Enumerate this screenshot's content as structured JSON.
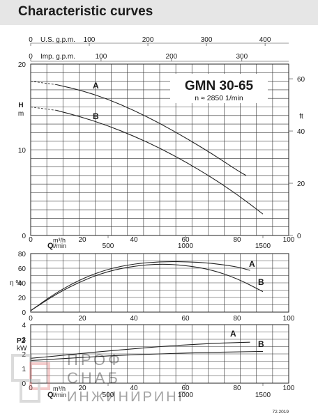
{
  "header": {
    "title": "Characteristic curves"
  },
  "footer_code": "72.2019",
  "watermark": {
    "line1": "ПРОФ",
    "line2": "СНАБ",
    "line3": "ИНЖИНИРИНГ"
  },
  "chart_data": [
    {
      "type": "line",
      "panel": "head",
      "model": "GMN 30-65",
      "speed": "n ≈ 2850 1/min",
      "xlim": [
        0,
        100
      ],
      "ylim": [
        0,
        20
      ],
      "ylabel_top": "H",
      "ylabel_unit": "m",
      "y_ticks": [
        "0",
        "10",
        "20"
      ],
      "y2_label": "ft",
      "y2_ticks": [
        {
          "value": 0,
          "label": "0"
        },
        {
          "value": 20,
          "label": "20"
        },
        {
          "value": 40,
          "label": "40"
        },
        {
          "value": 60,
          "label": "60"
        }
      ],
      "x_top_usgpm": {
        "label": "U.S. g.p.m.",
        "ticks": [
          {
            "value": 0,
            "label": "0"
          },
          {
            "value": 100,
            "label": "100"
          },
          {
            "value": 200,
            "label": "200"
          },
          {
            "value": 300,
            "label": "300"
          },
          {
            "value": 400,
            "label": "400"
          }
        ]
      },
      "x_top_impgpm": {
        "label": "Imp. g.p.m.",
        "ticks": [
          {
            "value": 0,
            "label": "0"
          },
          {
            "value": 100,
            "label": "100"
          },
          {
            "value": 200,
            "label": "200"
          },
          {
            "value": 300,
            "label": "300"
          }
        ]
      },
      "x_bottom": {
        "label": "Q",
        "unit1": "m³/h",
        "unit2": "l/min",
        "ticks": [
          "0",
          "20",
          "40",
          "60",
          "80",
          "100"
        ],
        "lmin_ticks": [
          {
            "value": 500,
            "label": "500"
          },
          {
            "value": 1000,
            "label": "1000"
          },
          {
            "value": 1500,
            "label": "1500"
          }
        ]
      },
      "series": [
        {
          "name": "A",
          "x": [
            0,
            10,
            20,
            30,
            40,
            50,
            60,
            70,
            80,
            83.5
          ],
          "y": [
            18.0,
            17.6,
            16.9,
            15.9,
            14.6,
            13.1,
            11.4,
            9.6,
            7.6,
            7.0
          ],
          "dashed_until": 10
        },
        {
          "name": "B",
          "x": [
            0,
            10,
            20,
            30,
            40,
            50,
            60,
            70,
            80,
            90
          ],
          "y": [
            15.0,
            14.6,
            13.8,
            12.8,
            11.6,
            10.2,
            8.6,
            6.8,
            4.8,
            2.5
          ],
          "dashed_until": 10
        }
      ]
    },
    {
      "type": "line",
      "panel": "efficiency",
      "ylabel": "η %",
      "xlim": [
        0,
        100
      ],
      "ylim": [
        0,
        80
      ],
      "y_ticks": [
        "0",
        "20",
        "40",
        "60",
        "80"
      ],
      "x_ticks": [
        "0",
        "20",
        "40",
        "60",
        "80",
        "100"
      ],
      "series": [
        {
          "name": "A",
          "x": [
            0,
            10,
            20,
            30,
            40,
            50,
            60,
            70,
            80,
            85
          ],
          "y": [
            2,
            27,
            46,
            59,
            66,
            69,
            69,
            67,
            62,
            57
          ]
        },
        {
          "name": "B",
          "x": [
            0,
            10,
            20,
            30,
            40,
            50,
            60,
            70,
            80,
            90
          ],
          "y": [
            2,
            25,
            43,
            56,
            63,
            66,
            64,
            58,
            46,
            28
          ]
        }
      ]
    },
    {
      "type": "line",
      "panel": "power",
      "ylabel_top": "P2",
      "ylabel_unit": "kW",
      "xlim": [
        0,
        100
      ],
      "ylim": [
        0,
        4
      ],
      "y_ticks": [
        "0",
        "1",
        "2",
        "3",
        "4"
      ],
      "x_bottom": {
        "label": "Q",
        "unit1": "m³/h",
        "unit2": "l/min",
        "ticks": [
          "0",
          "20",
          "40",
          "60",
          "80",
          "100"
        ],
        "lmin_ticks": [
          {
            "value": 500,
            "label": "500"
          },
          {
            "value": 1000,
            "label": "1000"
          },
          {
            "value": 1500,
            "label": "1500"
          }
        ]
      },
      "series": [
        {
          "name": "A",
          "x": [
            0,
            10,
            20,
            30,
            40,
            50,
            60,
            70,
            80,
            85
          ],
          "y": [
            1.7,
            1.86,
            2.04,
            2.2,
            2.35,
            2.5,
            2.62,
            2.71,
            2.78,
            2.8
          ]
        },
        {
          "name": "B",
          "x": [
            0,
            10,
            20,
            30,
            40,
            50,
            60,
            70,
            80,
            90
          ],
          "y": [
            1.55,
            1.65,
            1.76,
            1.86,
            1.94,
            2.0,
            2.06,
            2.1,
            2.14,
            2.17
          ]
        }
      ]
    }
  ]
}
